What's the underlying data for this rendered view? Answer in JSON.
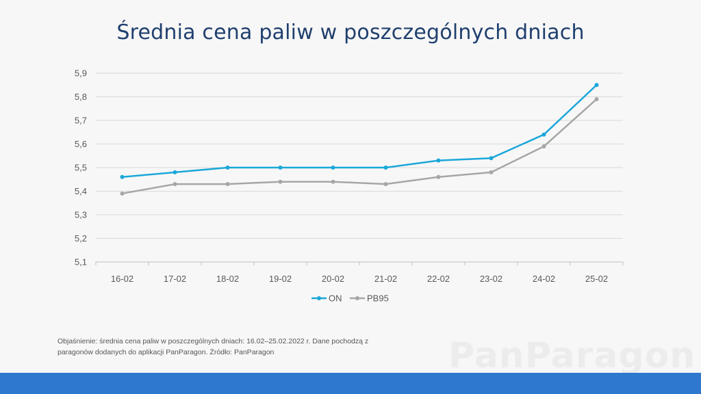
{
  "title": "Średnia cena paliw w poszczególnych dniach",
  "note": "Objaśnienie: średnia cena paliw w poszczególnych dniach: 16.02–25.02.2022 r. Dane pochodzą z paragonów dodanych do aplikacji PanParagon. Źródło: PanParagon",
  "watermark": "PanParagon",
  "colors": {
    "on": "#1aa7d9",
    "pb95": "#a6a6a6",
    "title": "#1f3f6e",
    "footer_bar": "#2f78d0",
    "grid": "#d9d9d9"
  },
  "chart_data": {
    "type": "line",
    "categories": [
      "16-02",
      "17-02",
      "18-02",
      "19-02",
      "20-02",
      "21-02",
      "22-02",
      "23-02",
      "24-02",
      "25-02"
    ],
    "series": [
      {
        "name": "ON",
        "values": [
          5.46,
          5.48,
          5.5,
          5.5,
          5.5,
          5.5,
          5.53,
          5.54,
          5.64,
          5.85
        ]
      },
      {
        "name": "PB95",
        "values": [
          5.39,
          5.43,
          5.43,
          5.44,
          5.44,
          5.43,
          5.46,
          5.48,
          5.59,
          5.79
        ]
      }
    ],
    "yticks": [
      "5,1",
      "5,2",
      "5,3",
      "5,4",
      "5,5",
      "5,6",
      "5,7",
      "5,8",
      "5,9"
    ],
    "ylim": [
      5.1,
      5.9
    ],
    "grid": true,
    "legend": "bottom"
  }
}
